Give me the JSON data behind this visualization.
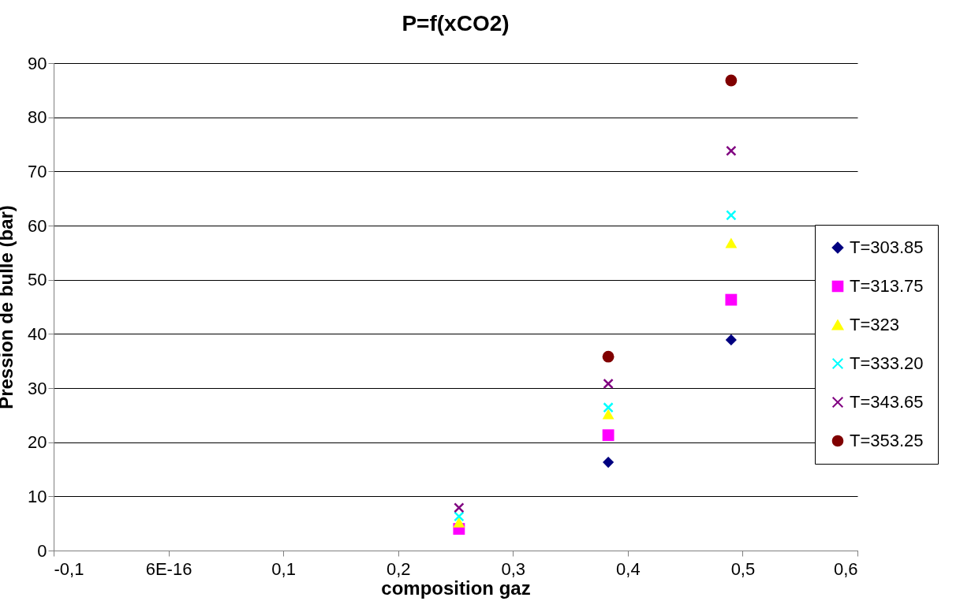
{
  "chart_data": {
    "type": "scatter",
    "title": "P=f(xCO2)",
    "xlabel": "composition gaz",
    "ylabel": "Pression de bulle (bar)",
    "xlim": [
      -0.1,
      0.6
    ],
    "xticks": [
      {
        "value": -0.1,
        "label": "-0,1"
      },
      {
        "value": 0,
        "label": "6E-16"
      },
      {
        "value": 0.1,
        "label": "0,1"
      },
      {
        "value": 0.2,
        "label": "0,2"
      },
      {
        "value": 0.3,
        "label": "0,3"
      },
      {
        "value": 0.4,
        "label": "0,4"
      },
      {
        "value": 0.5,
        "label": "0,5"
      },
      {
        "value": 0.6,
        "label": "0,6"
      }
    ],
    "ylim": [
      0,
      90
    ],
    "yticks": [
      0,
      10,
      20,
      30,
      40,
      50,
      60,
      70,
      80,
      90
    ],
    "grid": "y",
    "legend": "right",
    "series": [
      {
        "name": "T=303.85",
        "color": "#000080",
        "marker": "diamond",
        "x": [
          0.383,
          0.49
        ],
        "values": [
          16.3,
          38.9
        ]
      },
      {
        "name": "T=313.75",
        "color": "#ff00ff",
        "marker": "square",
        "x": [
          0.253,
          0.383,
          0.49
        ],
        "values": [
          4,
          21.3,
          46.3
        ]
      },
      {
        "name": "T=323",
        "color": "#ffff00",
        "marker": "triangle",
        "x": [
          0.253,
          0.383,
          0.49
        ],
        "values": [
          5.2,
          25.2,
          56.8
        ]
      },
      {
        "name": "T=333.20",
        "color": "#00ffff",
        "marker": "cross",
        "x": [
          0.253,
          0.383,
          0.49
        ],
        "values": [
          6.3,
          26.4,
          61.9
        ]
      },
      {
        "name": "T=343.65",
        "color": "#800080",
        "marker": "cross",
        "x": [
          0.253,
          0.383,
          0.49
        ],
        "values": [
          7.9,
          30.8,
          73.8
        ]
      },
      {
        "name": "T=353.25",
        "color": "#800000",
        "marker": "circle",
        "x": [
          0.383,
          0.49
        ],
        "values": [
          35.8,
          86.8
        ]
      }
    ]
  }
}
